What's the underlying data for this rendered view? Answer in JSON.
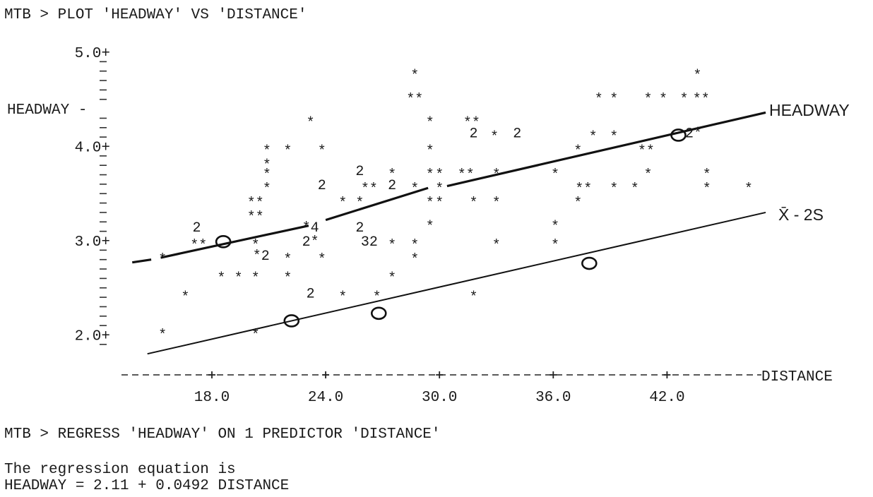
{
  "commands": {
    "plot": "MTB > PLOT 'HEADWAY' VS 'DISTANCE'",
    "regress": "MTB > REGRESS 'HEADWAY' ON 1 PREDICTOR 'DISTANCE'",
    "equation_intro": "The regression equation is",
    "equation": "HEADWAY = 2.11 + 0.0492 DISTANCE"
  },
  "chart_data": {
    "type": "scatter",
    "title": "",
    "xlabel": "DISTANCE",
    "ylabel": "HEADWAY",
    "xlim": [
      12.5,
      47.5
    ],
    "ylim": [
      1.8,
      5.05
    ],
    "grid": false,
    "x_ticks": [
      18,
      24,
      30,
      36,
      42
    ],
    "x_tick_labels": [
      "18.0",
      "24.0",
      "30.0",
      "36.0",
      "42.0"
    ],
    "y_ticks": [
      2.0,
      3.0,
      4.0,
      5.0
    ],
    "y_tick_labels": [
      "2.0+",
      "3.0+",
      "4.0+",
      "5.0+"
    ],
    "y_minor_ticks": [
      1.9,
      2.1,
      2.2,
      2.3,
      2.4,
      2.5,
      2.6,
      2.7,
      2.8,
      2.9,
      3.1,
      3.2,
      3.3,
      3.4,
      3.5,
      3.6,
      3.7,
      3.8,
      3.9,
      4.1,
      4.2,
      4.3,
      4.5,
      4.6,
      4.7,
      4.8,
      4.9
    ],
    "y_label_value": 4.4,
    "y_label_text": "HEADWAY -",
    "points": [
      {
        "x": 15.4,
        "y": 2.05,
        "m": "*"
      },
      {
        "x": 15.4,
        "y": 2.85,
        "m": "*"
      },
      {
        "x": 16.6,
        "y": 2.45,
        "m": "*"
      },
      {
        "x": 17.2,
        "y": 3.15,
        "m": "2"
      },
      {
        "x": 17.3,
        "y": 3.0,
        "m": "**"
      },
      {
        "x": 18.5,
        "y": 2.65,
        "m": "*"
      },
      {
        "x": 19.4,
        "y": 2.65,
        "m": "*"
      },
      {
        "x": 20.3,
        "y": 3.3,
        "m": "**"
      },
      {
        "x": 20.3,
        "y": 3.45,
        "m": "**"
      },
      {
        "x": 20.3,
        "y": 3.0,
        "m": "*"
      },
      {
        "x": 20.6,
        "y": 2.85,
        "m": "*2"
      },
      {
        "x": 20.3,
        "y": 2.65,
        "m": "*"
      },
      {
        "x": 20.3,
        "y": 2.05,
        "m": "*"
      },
      {
        "x": 20.9,
        "y": 3.85,
        "m": "*"
      },
      {
        "x": 20.9,
        "y": 3.75,
        "m": "*"
      },
      {
        "x": 20.9,
        "y": 3.6,
        "m": "*"
      },
      {
        "x": 20.9,
        "y": 4.0,
        "m": "*"
      },
      {
        "x": 22.0,
        "y": 4.0,
        "m": "*"
      },
      {
        "x": 22.0,
        "y": 2.85,
        "m": "*"
      },
      {
        "x": 22.0,
        "y": 2.65,
        "m": "*"
      },
      {
        "x": 23.2,
        "y": 3.15,
        "m": "*4"
      },
      {
        "x": 23.2,
        "y": 4.3,
        "m": "*"
      },
      {
        "x": 23.2,
        "y": 3.0,
        "m": "2*"
      },
      {
        "x": 23.2,
        "y": 2.45,
        "m": "2"
      },
      {
        "x": 23.8,
        "y": 4.0,
        "m": "*"
      },
      {
        "x": 23.8,
        "y": 3.6,
        "m": "2"
      },
      {
        "x": 23.8,
        "y": 2.85,
        "m": "*"
      },
      {
        "x": 24.9,
        "y": 2.45,
        "m": "*"
      },
      {
        "x": 24.9,
        "y": 3.45,
        "m": "*"
      },
      {
        "x": 25.8,
        "y": 3.15,
        "m": "2"
      },
      {
        "x": 25.8,
        "y": 3.45,
        "m": "*"
      },
      {
        "x": 25.8,
        "y": 3.75,
        "m": "2"
      },
      {
        "x": 26.3,
        "y": 3.6,
        "m": "**"
      },
      {
        "x": 26.3,
        "y": 3.0,
        "m": "32"
      },
      {
        "x": 26.7,
        "y": 2.45,
        "m": "*"
      },
      {
        "x": 27.5,
        "y": 3.75,
        "m": "*"
      },
      {
        "x": 27.5,
        "y": 3.6,
        "m": "2"
      },
      {
        "x": 27.5,
        "y": 3.0,
        "m": "*"
      },
      {
        "x": 27.5,
        "y": 2.65,
        "m": "*"
      },
      {
        "x": 28.7,
        "y": 3.6,
        "m": "*"
      },
      {
        "x": 28.7,
        "y": 3.0,
        "m": "*"
      },
      {
        "x": 28.7,
        "y": 2.85,
        "m": "*"
      },
      {
        "x": 28.7,
        "y": 4.8,
        "m": "*"
      },
      {
        "x": 28.7,
        "y": 4.55,
        "m": "**"
      },
      {
        "x": 29.5,
        "y": 4.3,
        "m": "*"
      },
      {
        "x": 29.5,
        "y": 4.0,
        "m": "*"
      },
      {
        "x": 29.5,
        "y": 3.75,
        "m": "*"
      },
      {
        "x": 29.5,
        "y": 3.45,
        "m": "*"
      },
      {
        "x": 29.5,
        "y": 3.2,
        "m": "*"
      },
      {
        "x": 30.0,
        "y": 3.75,
        "m": "*"
      },
      {
        "x": 30.0,
        "y": 3.45,
        "m": "*"
      },
      {
        "x": 30.0,
        "y": 3.6,
        "m": "*"
      },
      {
        "x": 31.4,
        "y": 3.75,
        "m": "**"
      },
      {
        "x": 31.7,
        "y": 4.3,
        "m": "**"
      },
      {
        "x": 31.8,
        "y": 4.15,
        "m": "2"
      },
      {
        "x": 31.8,
        "y": 3.45,
        "m": "*"
      },
      {
        "x": 31.8,
        "y": 2.45,
        "m": "*"
      },
      {
        "x": 32.9,
        "y": 4.15,
        "m": "*"
      },
      {
        "x": 33.0,
        "y": 3.75,
        "m": "*"
      },
      {
        "x": 33.0,
        "y": 3.45,
        "m": "*"
      },
      {
        "x": 33.0,
        "y": 3.0,
        "m": "*"
      },
      {
        "x": 34.1,
        "y": 4.15,
        "m": "2"
      },
      {
        "x": 36.1,
        "y": 3.75,
        "m": "*"
      },
      {
        "x": 36.1,
        "y": 3.2,
        "m": "*"
      },
      {
        "x": 36.1,
        "y": 3.0,
        "m": "*"
      },
      {
        "x": 37.3,
        "y": 4.0,
        "m": "*"
      },
      {
        "x": 37.3,
        "y": 3.45,
        "m": "*"
      },
      {
        "x": 37.6,
        "y": 3.6,
        "m": "**"
      },
      {
        "x": 38.1,
        "y": 4.15,
        "m": "*"
      },
      {
        "x": 38.4,
        "y": 4.55,
        "m": "*"
      },
      {
        "x": 39.2,
        "y": 4.55,
        "m": "*"
      },
      {
        "x": 39.2,
        "y": 4.15,
        "m": "*"
      },
      {
        "x": 39.2,
        "y": 3.6,
        "m": "*"
      },
      {
        "x": 40.3,
        "y": 3.6,
        "m": "*"
      },
      {
        "x": 40.9,
        "y": 4.0,
        "m": "**"
      },
      {
        "x": 41.0,
        "y": 3.75,
        "m": "*"
      },
      {
        "x": 41.0,
        "y": 4.55,
        "m": "*"
      },
      {
        "x": 41.8,
        "y": 4.55,
        "m": "*"
      },
      {
        "x": 42.9,
        "y": 4.55,
        "m": "*"
      },
      {
        "x": 43.4,
        "y": 4.15,
        "m": "2*"
      },
      {
        "x": 43.6,
        "y": 4.8,
        "m": "*"
      },
      {
        "x": 43.8,
        "y": 4.55,
        "m": "**"
      },
      {
        "x": 44.1,
        "y": 3.75,
        "m": "*"
      },
      {
        "x": 44.1,
        "y": 3.6,
        "m": "*"
      },
      {
        "x": 46.3,
        "y": 3.6,
        "m": "*"
      }
    ],
    "series": [
      {
        "name": "HEADWAY",
        "segments": [
          [
            [
              13.8,
              2.77
            ],
            [
              14.8,
              2.8
            ]
          ],
          [
            [
              15.3,
              2.82
            ],
            [
              23.1,
              3.16
            ]
          ],
          [
            [
              24.0,
              3.22
            ],
            [
              29.4,
              3.56
            ]
          ],
          [
            [
              30.4,
              3.58
            ],
            [
              47.2,
              4.36
            ]
          ]
        ],
        "circled": [
          [
            18.6,
            2.99
          ],
          [
            42.6,
            4.12
          ]
        ]
      },
      {
        "name": "X̄ - 2S",
        "segments": [
          [
            [
              14.6,
              1.8
            ],
            [
              47.2,
              3.3
            ]
          ]
        ],
        "circled": [
          [
            22.2,
            2.15
          ],
          [
            26.8,
            2.23
          ],
          [
            37.9,
            2.76
          ]
        ]
      }
    ]
  }
}
